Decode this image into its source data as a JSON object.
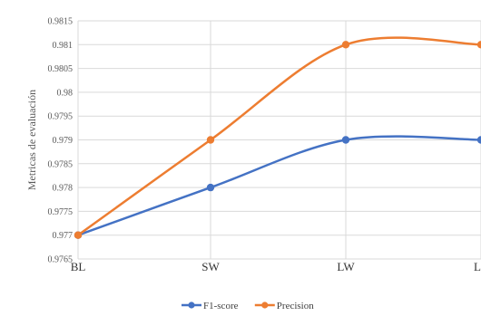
{
  "chart_data": {
    "type": "line",
    "categories": [
      "BL",
      "SW",
      "LW",
      "LL"
    ],
    "series": [
      {
        "name": "F1-score",
        "values": [
          0.977,
          0.978,
          0.979,
          0.979
        ],
        "color": "#4472C4"
      },
      {
        "name": "Precision",
        "values": [
          0.977,
          0.979,
          0.981,
          0.981
        ],
        "color": "#ED7D31"
      }
    ],
    "title": "",
    "xlabel": "",
    "ylabel": "Metricas de evaluación",
    "ylim": [
      0.9765,
      0.9815
    ],
    "yticks": [
      "0.9765",
      "0.977",
      "0.9775",
      "0.978",
      "0.9785",
      "0.979",
      "0.9795",
      "0.98",
      "0.9805",
      "0.981",
      "0.9815"
    ],
    "grid": true,
    "smooth": true,
    "legend_position": "bottom"
  }
}
